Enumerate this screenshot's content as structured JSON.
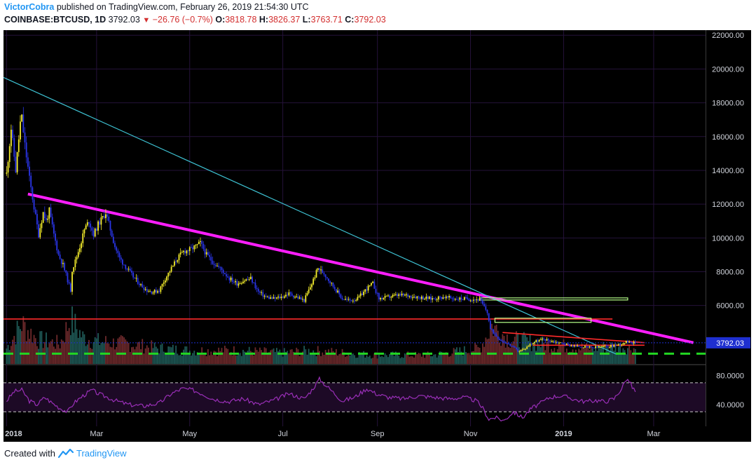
{
  "header": {
    "author": "VictorCobra",
    "published_text": "published on TradingView.com, February 26, 2019 21:54:30 UTC",
    "symbol": "COINBASE:BTCUSD, 1D",
    "last": "3792.03",
    "change": "−26.76 (−0.7%)",
    "o_label": "O:",
    "o_value": "3818.78",
    "h_label": "H:",
    "h_value": "3826.37",
    "l_label": "L:",
    "l_value": "3763.71",
    "c_label": "C:",
    "c_value": "3792.03"
  },
  "footer": {
    "created_with": "Created with",
    "brand": "TradingView"
  },
  "colors": {
    "background": "#000000",
    "grid": "#25123a",
    "candle_up": "#f5ee2c",
    "candle_down": "#2a35e8",
    "trend_magenta": "#ff1eff",
    "trend_cyan": "#3ec3d4",
    "resistance_red": "#ff2a2a",
    "support_green": "#22d622",
    "box_outline": "#b6ff8a",
    "rsi": "#9a2fb8",
    "price_tag": "#1e2fd0"
  },
  "chart_data": {
    "type": "candlestick",
    "symbol": "COINBASE:BTCUSD",
    "interval": "1D",
    "x_ticks": [
      "2018",
      "Mar",
      "May",
      "Jul",
      "Sep",
      "Nov",
      "2019",
      "Mar"
    ],
    "x_tick_days": [
      0,
      59,
      120,
      181,
      243,
      304,
      365,
      424
    ],
    "x_range_days": [
      -2,
      458
    ],
    "y_ticks": [
      "22000.00",
      "20000.00",
      "18000.00",
      "16000.00",
      "14000.00",
      "12000.00",
      "10000.00",
      "8000.00",
      "6000.00"
    ],
    "y_tick_values": [
      22000,
      20000,
      18000,
      16000,
      14000,
      12000,
      10000,
      8000,
      6000
    ],
    "y_range": [
      2500,
      22300
    ],
    "last_price": 3792.03,
    "last_price_label": "3792.03",
    "price_path": [
      [
        0,
        13800
      ],
      [
        3,
        16500
      ],
      [
        6,
        14000
      ],
      [
        9,
        16800
      ],
      [
        10,
        17100
      ],
      [
        12,
        15500
      ],
      [
        15,
        13500
      ],
      [
        18,
        11800
      ],
      [
        21,
        10200
      ],
      [
        24,
        11500
      ],
      [
        26,
        11000
      ],
      [
        28,
        11600
      ],
      [
        31,
        10200
      ],
      [
        34,
        9000
      ],
      [
        37,
        8400
      ],
      [
        40,
        7500
      ],
      [
        42,
        6900
      ],
      [
        43,
        8100
      ],
      [
        46,
        8900
      ],
      [
        49,
        9800
      ],
      [
        51,
        10500
      ],
      [
        54,
        11000
      ],
      [
        57,
        10200
      ],
      [
        60,
        10800
      ],
      [
        63,
        11200
      ],
      [
        65,
        11500
      ],
      [
        68,
        10500
      ],
      [
        71,
        9500
      ],
      [
        74,
        8800
      ],
      [
        78,
        8300
      ],
      [
        83,
        7700
      ],
      [
        88,
        7200
      ],
      [
        92,
        6900
      ],
      [
        96,
        6800
      ],
      [
        100,
        6900
      ],
      [
        104,
        7600
      ],
      [
        108,
        8200
      ],
      [
        112,
        8800
      ],
      [
        116,
        9200
      ],
      [
        120,
        9300
      ],
      [
        124,
        9500
      ],
      [
        127,
        9700
      ],
      [
        131,
        9000
      ],
      [
        136,
        8500
      ],
      [
        141,
        8100
      ],
      [
        146,
        7600
      ],
      [
        151,
        7300
      ],
      [
        156,
        7500
      ],
      [
        160,
        7600
      ],
      [
        165,
        6800
      ],
      [
        170,
        6500
      ],
      [
        175,
        6400
      ],
      [
        180,
        6500
      ],
      [
        185,
        6700
      ],
      [
        190,
        6500
      ],
      [
        195,
        6300
      ],
      [
        200,
        7300
      ],
      [
        204,
        8200
      ],
      [
        208,
        7900
      ],
      [
        212,
        7400
      ],
      [
        216,
        6900
      ],
      [
        220,
        6400
      ],
      [
        225,
        6300
      ],
      [
        230,
        6400
      ],
      [
        236,
        7000
      ],
      [
        240,
        7300
      ],
      [
        244,
        6400
      ],
      [
        250,
        6500
      ],
      [
        256,
        6600
      ],
      [
        262,
        6600
      ],
      [
        270,
        6500
      ],
      [
        278,
        6400
      ],
      [
        286,
        6500
      ],
      [
        294,
        6400
      ],
      [
        302,
        6400
      ],
      [
        310,
        6350
      ],
      [
        315,
        5600
      ],
      [
        317,
        4600
      ],
      [
        320,
        4300
      ],
      [
        323,
        4000
      ],
      [
        327,
        3800
      ],
      [
        331,
        3600
      ],
      [
        335,
        3300
      ],
      [
        339,
        3400
      ],
      [
        343,
        3700
      ],
      [
        347,
        3900
      ],
      [
        352,
        4000
      ],
      [
        357,
        3900
      ],
      [
        362,
        3800
      ],
      [
        367,
        3700
      ],
      [
        372,
        3600
      ],
      [
        378,
        3550
      ],
      [
        384,
        3500
      ],
      [
        390,
        3550
      ],
      [
        396,
        3600
      ],
      [
        402,
        3700
      ],
      [
        406,
        3850
      ],
      [
        408,
        3900
      ],
      [
        410,
        3800
      ],
      [
        412,
        3792
      ]
    ],
    "volume_path": [
      [
        0,
        0.35
      ],
      [
        10,
        0.9
      ],
      [
        20,
        0.55
      ],
      [
        35,
        0.45
      ],
      [
        42,
        1.0
      ],
      [
        50,
        0.6
      ],
      [
        60,
        0.5
      ],
      [
        80,
        0.45
      ],
      [
        100,
        0.35
      ],
      [
        120,
        0.3
      ],
      [
        150,
        0.3
      ],
      [
        180,
        0.25
      ],
      [
        200,
        0.3
      ],
      [
        240,
        0.2
      ],
      [
        280,
        0.2
      ],
      [
        310,
        0.35
      ],
      [
        318,
        0.85
      ],
      [
        330,
        0.55
      ],
      [
        350,
        0.45
      ],
      [
        380,
        0.35
      ],
      [
        400,
        0.4
      ],
      [
        412,
        0.35
      ]
    ],
    "drawings": [
      {
        "name": "magenta-trendline",
        "color": "#ff1eff",
        "from": [
          14,
          12600
        ],
        "to": [
          450,
          3800
        ]
      },
      {
        "name": "cyan-trendline",
        "color": "#3ec3d4",
        "from": [
          -2,
          19500
        ],
        "to": [
          400,
          3100
        ]
      },
      {
        "name": "red-resistance",
        "color": "#ff2a2a",
        "from": [
          -2,
          5200
        ],
        "to": [
          397,
          5200
        ]
      },
      {
        "name": "red-upper-trend",
        "color": "#ff2a2a",
        "from": [
          325,
          4400
        ],
        "to": [
          418,
          3800
        ]
      },
      {
        "name": "red-lower-line",
        "color": "#ff2a2a",
        "from": [
          345,
          3650
        ],
        "to": [
          418,
          3650
        ]
      },
      {
        "name": "green-support-dashed",
        "color": "#22d622",
        "from": [
          -2,
          3150
        ],
        "to": [
          458,
          3150
        ]
      }
    ],
    "boxes": [
      {
        "name": "upper-box",
        "from": [
          310,
          6450
        ],
        "to": [
          407,
          6350
        ]
      },
      {
        "name": "lower-box",
        "from": [
          320,
          5250
        ],
        "to": [
          383,
          5000
        ]
      }
    ],
    "rsi": {
      "ticks": [
        "80.0000",
        "40.0000"
      ],
      "tick_values": [
        80,
        40
      ],
      "range": [
        10,
        95
      ],
      "overbought": 70,
      "oversold": 30,
      "path": [
        [
          0,
          45
        ],
        [
          5,
          58
        ],
        [
          10,
          60
        ],
        [
          15,
          45
        ],
        [
          20,
          40
        ],
        [
          25,
          50
        ],
        [
          30,
          42
        ],
        [
          35,
          35
        ],
        [
          40,
          30
        ],
        [
          44,
          42
        ],
        [
          50,
          52
        ],
        [
          56,
          60
        ],
        [
          60,
          55
        ],
        [
          66,
          50
        ],
        [
          72,
          45
        ],
        [
          80,
          40
        ],
        [
          90,
          38
        ],
        [
          100,
          42
        ],
        [
          108,
          55
        ],
        [
          115,
          62
        ],
        [
          122,
          60
        ],
        [
          128,
          55
        ],
        [
          135,
          48
        ],
        [
          145,
          44
        ],
        [
          155,
          48
        ],
        [
          165,
          40
        ],
        [
          175,
          46
        ],
        [
          185,
          55
        ],
        [
          195,
          48
        ],
        [
          200,
          60
        ],
        [
          205,
          75
        ],
        [
          210,
          65
        ],
        [
          215,
          55
        ],
        [
          220,
          45
        ],
        [
          228,
          50
        ],
        [
          236,
          62
        ],
        [
          242,
          55
        ],
        [
          250,
          50
        ],
        [
          260,
          48
        ],
        [
          270,
          52
        ],
        [
          280,
          50
        ],
        [
          290,
          48
        ],
        [
          300,
          50
        ],
        [
          308,
          45
        ],
        [
          312,
          35
        ],
        [
          316,
          20
        ],
        [
          320,
          22
        ],
        [
          326,
          18
        ],
        [
          332,
          30
        ],
        [
          338,
          22
        ],
        [
          344,
          35
        ],
        [
          350,
          42
        ],
        [
          356,
          50
        ],
        [
          362,
          52
        ],
        [
          368,
          50
        ],
        [
          374,
          46
        ],
        [
          380,
          44
        ],
        [
          386,
          46
        ],
        [
          392,
          44
        ],
        [
          398,
          48
        ],
        [
          403,
          62
        ],
        [
          406,
          75
        ],
        [
          408,
          72
        ],
        [
          410,
          64
        ],
        [
          412,
          58
        ]
      ]
    }
  }
}
